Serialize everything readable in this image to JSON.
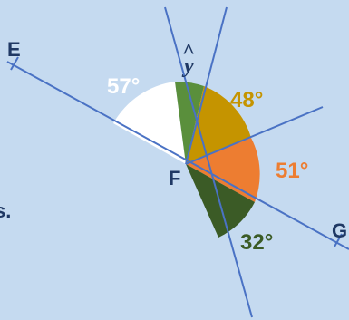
{
  "colors": {
    "background": "#c5daf0",
    "line": "#4a72c4",
    "sector_57": "#ffffff",
    "sector_y": "#5a8f3c",
    "sector_48": "#c59400",
    "sector_51": "#ed7d31",
    "sector_32": "#3b5b26",
    "text_dark": "#1f3864"
  },
  "points": {
    "center": "F",
    "left": "E",
    "right": "G"
  },
  "angles": {
    "a57": "57°",
    "y": "y",
    "y_hat": "^",
    "a48": "48°",
    "a51": "51°",
    "a32": "32°"
  },
  "edge_text": "s."
}
